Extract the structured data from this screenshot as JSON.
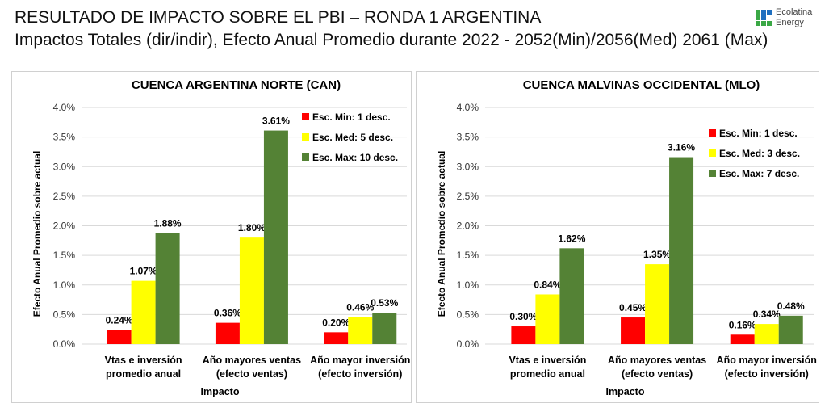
{
  "title": "RESULTADO DE IMPACTO SOBRE EL PBI – RONDA 1 ARGENTINA",
  "subtitle": "Impactos Totales (dir/indir), Efecto Anual Promedio durante 2022 - 2052(Min)/2056(Med) 2061 (Max)",
  "logo": {
    "line1": "Ecolatina",
    "line2": "Energy"
  },
  "colors": {
    "min": "#ff0000",
    "med": "#ffff00",
    "max": "#548235"
  },
  "chart_data": [
    {
      "type": "bar",
      "title": "CUENCA ARGENTINA NORTE (CAN)",
      "xlabel": "Impacto",
      "ylabel": "Efecto Anual Promedio  sobre actual",
      "categories": [
        [
          "Vtas e inversión",
          "promedio anual"
        ],
        [
          "Año mayores ventas",
          "(efecto ventas)"
        ],
        [
          "Año mayor inversión",
          "(efecto inversión)"
        ]
      ],
      "yticks": [
        "0.0%",
        "0.5%",
        "1.0%",
        "1.5%",
        "2.0%",
        "2.5%",
        "3.0%",
        "3.5%",
        "4.0%"
      ],
      "ylim": [
        0,
        4
      ],
      "grid": true,
      "legend": "top-right",
      "series": [
        {
          "name": "Esc. Min: 1 desc.",
          "values": [
            0.24,
            0.36,
            0.2
          ],
          "labels": [
            "0.24%",
            "0.36%",
            "0.20%"
          ]
        },
        {
          "name": "Esc. Med: 5 desc.",
          "values": [
            1.07,
            1.8,
            0.46
          ],
          "labels": [
            "1.07%",
            "1.80%",
            "0.46%"
          ]
        },
        {
          "name": "Esc. Max: 10 desc.",
          "values": [
            1.88,
            3.61,
            0.53
          ],
          "labels": [
            "1.88%",
            "3.61%",
            "0.53%"
          ]
        }
      ]
    },
    {
      "type": "bar",
      "title": "CUENCA MALVINAS OCCIDENTAL (MLO)",
      "xlabel": "Impacto",
      "ylabel": "Efecto Anual Promedio  sobre actual",
      "categories": [
        [
          "Vtas e inversión",
          "promedio anual"
        ],
        [
          "Año mayores ventas",
          "(efecto ventas)"
        ],
        [
          "Año mayor inversión",
          "(efecto inversión)"
        ]
      ],
      "yticks": [
        "0.0%",
        "0.5%",
        "1.0%",
        "1.5%",
        "2.0%",
        "2.5%",
        "3.0%",
        "3.5%",
        "4.0%"
      ],
      "ylim": [
        0,
        4
      ],
      "grid": true,
      "legend": "top-right",
      "series": [
        {
          "name": "Esc. Min: 1 desc.",
          "values": [
            0.3,
            0.45,
            0.16
          ],
          "labels": [
            "0.30%",
            "0.45%",
            "0.16%"
          ]
        },
        {
          "name": "Esc. Med: 3 desc.",
          "values": [
            0.84,
            1.35,
            0.34
          ],
          "labels": [
            "0.84%",
            "1.35%",
            "0.34%"
          ]
        },
        {
          "name": "Esc. Max: 7 desc.",
          "values": [
            1.62,
            3.16,
            0.48
          ],
          "labels": [
            "1.62%",
            "3.16%",
            "0.48%"
          ]
        }
      ]
    }
  ]
}
